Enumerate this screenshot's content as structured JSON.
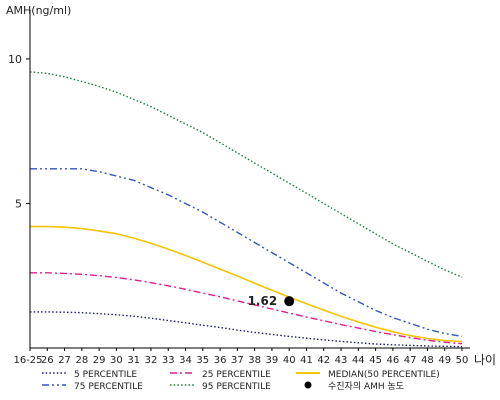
{
  "chart_data": {
    "type": "line",
    "ylabel": "AMH(ng/ml)",
    "xlabel": "나이",
    "categories": [
      "16-25",
      "26",
      "27",
      "28",
      "29",
      "30",
      "31",
      "32",
      "33",
      "34",
      "35",
      "36",
      "37",
      "38",
      "39",
      "40",
      "41",
      "42",
      "43",
      "44",
      "45",
      "46",
      "47",
      "48",
      "49",
      "50"
    ],
    "ylim": [
      0,
      11
    ],
    "yticks": [
      5,
      10
    ],
    "legend_position": "bottom",
    "series": [
      {
        "name": "5 PERCENTILE",
        "color": "#1b1b6b",
        "style": "dotted",
        "values": [
          1.25,
          1.25,
          1.24,
          1.22,
          1.19,
          1.15,
          1.1,
          1.03,
          0.95,
          0.87,
          0.79,
          0.71,
          0.62,
          0.54,
          0.47,
          0.4,
          0.34,
          0.28,
          0.23,
          0.18,
          0.14,
          0.11,
          0.09,
          0.07,
          0.06,
          0.05
        ]
      },
      {
        "name": "25 PERCENTILE",
        "color": "#e0208a",
        "style": "dashdot",
        "values": [
          2.6,
          2.6,
          2.58,
          2.55,
          2.5,
          2.44,
          2.36,
          2.26,
          2.15,
          2.03,
          1.9,
          1.77,
          1.63,
          1.49,
          1.35,
          1.21,
          1.07,
          0.94,
          0.81,
          0.69,
          0.57,
          0.46,
          0.36,
          0.27,
          0.2,
          0.15
        ]
      },
      {
        "name": "MEDIAN(50 PERCENTILE)",
        "color": "#f5c400",
        "style": "solid",
        "values": [
          4.2,
          4.2,
          4.18,
          4.13,
          4.05,
          3.95,
          3.8,
          3.62,
          3.42,
          3.2,
          2.97,
          2.73,
          2.49,
          2.24,
          2.0,
          1.76,
          1.53,
          1.31,
          1.1,
          0.9,
          0.72,
          0.56,
          0.43,
          0.33,
          0.26,
          0.22
        ]
      },
      {
        "name": "75 PERCENTILE",
        "color": "#3355bb",
        "style": "dashdotdot",
        "values": [
          6.2,
          6.2,
          6.2,
          6.2,
          6.1,
          5.95,
          5.8,
          5.55,
          5.3,
          5.0,
          4.7,
          4.35,
          4.0,
          3.65,
          3.3,
          2.95,
          2.6,
          2.25,
          1.9,
          1.6,
          1.3,
          1.05,
          0.85,
          0.65,
          0.5,
          0.4
        ]
      },
      {
        "name": "95 PERCENTILE",
        "color": "#1a7a3a",
        "style": "dotted",
        "values": [
          9.55,
          9.5,
          9.38,
          9.22,
          9.05,
          8.85,
          8.6,
          8.35,
          8.05,
          7.75,
          7.45,
          7.1,
          6.75,
          6.4,
          6.05,
          5.7,
          5.35,
          5.0,
          4.65,
          4.3,
          3.95,
          3.6,
          3.3,
          3.0,
          2.7,
          2.45
        ]
      }
    ],
    "marker": {
      "name": "수진자의 AMH 농도",
      "x": "40",
      "y": 1.62,
      "label": "1.62",
      "color": "#000000"
    }
  }
}
